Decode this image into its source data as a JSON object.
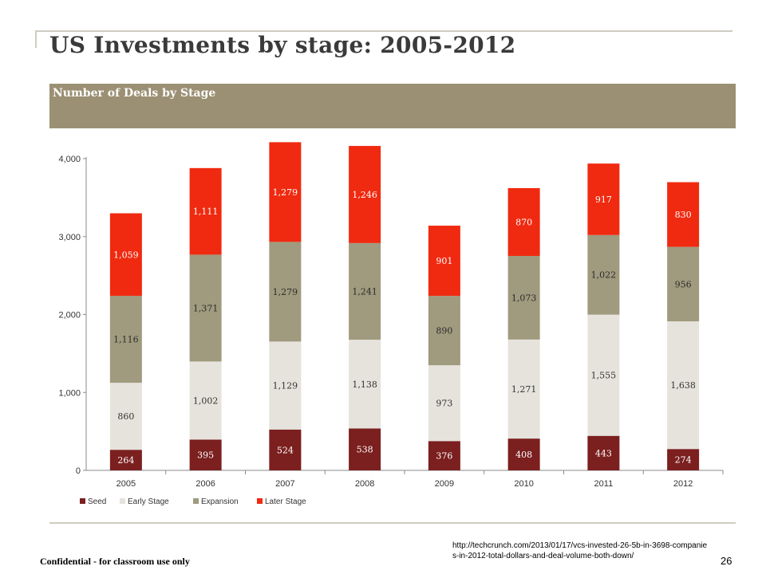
{
  "slide": {
    "title": "US Investments by stage: 2005-2012",
    "chart_header": "Number of Deals by Stage",
    "footer_left": "Confidential - for classroom use only",
    "source_url": "http://techcrunch.com/2013/01/17/vcs-invested-26-5b-in-3698-companies-in-2012-total-dollars-and-deal-volume-both-down/",
    "page_number": "26"
  },
  "chart_data": {
    "type": "bar",
    "stacked": true,
    "title": "Number of Deals by Stage",
    "categories": [
      "2005",
      "2006",
      "2007",
      "2008",
      "2009",
      "2010",
      "2011",
      "2012"
    ],
    "series": [
      {
        "name": "Seed",
        "color": "#7b1f1f",
        "label_color": "#ffffff",
        "values": [
          264,
          395,
          524,
          538,
          376,
          408,
          443,
          274
        ]
      },
      {
        "name": "Early Stage",
        "color": "#e6e3dc",
        "label_color": "#333333",
        "values": [
          860,
          1002,
          1129,
          1138,
          973,
          1271,
          1555,
          1638
        ]
      },
      {
        "name": "Expansion",
        "color": "#a09a7e",
        "label_color": "#2b2b2b",
        "values": [
          1116,
          1371,
          1279,
          1241,
          890,
          1073,
          1022,
          956
        ]
      },
      {
        "name": "Later Stage",
        "color": "#f02a10",
        "label_color": "#ffffff",
        "values": [
          1059,
          1111,
          1279,
          1246,
          901,
          870,
          917,
          830
        ]
      }
    ],
    "value_labels": [
      [
        "264",
        "395",
        "524",
        "538",
        "376",
        "408",
        "443",
        "274"
      ],
      [
        "860",
        "1,002",
        "1,129",
        "1,138",
        "973",
        "1,271",
        "1,555",
        "1,638"
      ],
      [
        "1,116",
        "1,371",
        "1,279",
        "1,241",
        "890",
        "1,073",
        "1,022",
        "956"
      ],
      [
        "1,059",
        "1,111",
        "1,279",
        "1,246",
        "901",
        "870",
        "917",
        "830"
      ]
    ],
    "ylim": [
      0,
      4000
    ],
    "yticks": [
      0,
      1000,
      2000,
      3000,
      4000
    ],
    "ytick_labels": [
      "0",
      "1,000",
      "2,000",
      "3,000",
      "4,000"
    ],
    "grid": false,
    "legend_position": "bottom-left"
  }
}
